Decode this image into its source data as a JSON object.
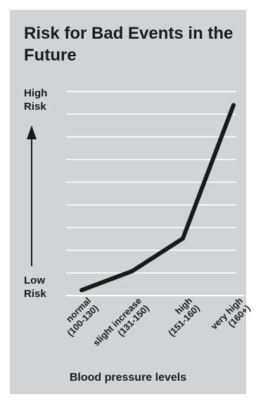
{
  "chart_data": {
    "type": "line",
    "title": "Risk for Bad Events in the Future",
    "xlabel": "Blood pressure levels",
    "ylabel_high": "High Risk",
    "ylabel_low": "Low Risk",
    "categories": [
      "normal (100-130)",
      "slight increase (131-150)",
      "high (151-160)",
      "very high (160+)"
    ],
    "category_lines": [
      [
        "normal",
        "(100-130)"
      ],
      [
        "slight increase",
        "(131-150)"
      ],
      [
        "high",
        "(151-160)"
      ],
      [
        "very high",
        "(160+)"
      ]
    ],
    "values": [
      0.2,
      0.9,
      2.1,
      7.0
    ],
    "ylim": [
      0,
      7.5
    ],
    "grid": true,
    "colors": {
      "background": "#d1d3d4",
      "line": "#1a1a1a",
      "grid": "#ffffff"
    }
  }
}
